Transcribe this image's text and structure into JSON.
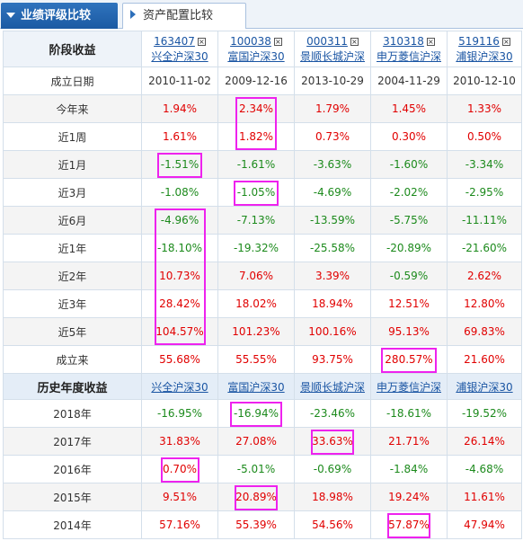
{
  "tabs": {
    "active_label": "业绩评级比较",
    "inactive_label": "资产配置比较"
  },
  "header": {
    "period_label": "阶段收益",
    "annual_label": "历史年度收益",
    "funds": [
      {
        "code": "163407",
        "name": "兴全沪深30"
      },
      {
        "code": "100038",
        "name": "富国沪深30"
      },
      {
        "code": "000311",
        "name": "景顺长城沪深"
      },
      {
        "code": "310318",
        "name": "申万菱信沪深"
      },
      {
        "code": "519116",
        "name": "浦银沪深30"
      }
    ],
    "close_glyph": "×"
  },
  "inception_row": {
    "label": "成立日期",
    "values": [
      "2010-11-02",
      "2009-12-16",
      "2013-10-29",
      "2004-11-29",
      "2010-12-10"
    ]
  },
  "period_rows": [
    {
      "label": "今年来",
      "values": [
        "1.94%",
        "2.34%",
        "1.79%",
        "1.45%",
        "1.33%"
      ],
      "signs": [
        "pos",
        "pos",
        "pos",
        "pos",
        "pos"
      ]
    },
    {
      "label": "近1周",
      "values": [
        "1.61%",
        "1.82%",
        "0.73%",
        "0.30%",
        "0.50%"
      ],
      "signs": [
        "pos",
        "pos",
        "pos",
        "pos",
        "pos"
      ]
    },
    {
      "label": "近1月",
      "values": [
        "-1.51%",
        "-1.61%",
        "-3.63%",
        "-1.60%",
        "-3.34%"
      ],
      "signs": [
        "neg",
        "neg",
        "neg",
        "neg",
        "neg"
      ]
    },
    {
      "label": "近3月",
      "values": [
        "-1.08%",
        "-1.05%",
        "-4.69%",
        "-2.02%",
        "-2.95%"
      ],
      "signs": [
        "neg",
        "neg",
        "neg",
        "neg",
        "neg"
      ]
    },
    {
      "label": "近6月",
      "values": [
        "-4.96%",
        "-7.13%",
        "-13.59%",
        "-5.75%",
        "-11.11%"
      ],
      "signs": [
        "neg",
        "neg",
        "neg",
        "neg",
        "neg"
      ]
    },
    {
      "label": "近1年",
      "values": [
        "-18.10%",
        "-19.32%",
        "-25.58%",
        "-20.89%",
        "-21.60%"
      ],
      "signs": [
        "neg",
        "neg",
        "neg",
        "neg",
        "neg"
      ]
    },
    {
      "label": "近2年",
      "values": [
        "10.73%",
        "7.06%",
        "3.39%",
        "-0.59%",
        "2.62%"
      ],
      "signs": [
        "pos",
        "pos",
        "pos",
        "neg",
        "pos"
      ]
    },
    {
      "label": "近3年",
      "values": [
        "28.42%",
        "18.02%",
        "18.94%",
        "12.51%",
        "12.80%"
      ],
      "signs": [
        "pos",
        "pos",
        "pos",
        "pos",
        "pos"
      ]
    },
    {
      "label": "近5年",
      "values": [
        "104.57%",
        "101.23%",
        "100.16%",
        "95.13%",
        "69.83%"
      ],
      "signs": [
        "pos",
        "pos",
        "pos",
        "pos",
        "pos"
      ]
    },
    {
      "label": "成立来",
      "values": [
        "55.68%",
        "55.55%",
        "93.75%",
        "280.57%",
        "21.60%"
      ],
      "signs": [
        "pos",
        "pos",
        "pos",
        "pos",
        "pos"
      ]
    }
  ],
  "annual_rows": [
    {
      "label": "2018年",
      "values": [
        "-16.95%",
        "-16.94%",
        "-23.46%",
        "-18.61%",
        "-19.52%"
      ],
      "signs": [
        "neg",
        "neg",
        "neg",
        "neg",
        "neg"
      ]
    },
    {
      "label": "2017年",
      "values": [
        "31.83%",
        "27.08%",
        "33.63%",
        "21.71%",
        "26.14%"
      ],
      "signs": [
        "pos",
        "pos",
        "pos",
        "pos",
        "pos"
      ]
    },
    {
      "label": "2016年",
      "values": [
        "0.70%",
        "-5.01%",
        "-0.69%",
        "-1.84%",
        "-4.68%"
      ],
      "signs": [
        "pos",
        "neg",
        "neg",
        "neg",
        "neg"
      ]
    },
    {
      "label": "2015年",
      "values": [
        "9.51%",
        "20.89%",
        "18.98%",
        "19.24%",
        "11.61%"
      ],
      "signs": [
        "pos",
        "pos",
        "pos",
        "pos",
        "pos"
      ]
    },
    {
      "label": "2014年",
      "values": [
        "57.16%",
        "55.39%",
        "54.56%",
        "57.87%",
        "47.94%"
      ],
      "signs": [
        "pos",
        "pos",
        "pos",
        "pos",
        "pos"
      ]
    }
  ],
  "colors": {
    "positive": "#e10000",
    "negative": "#1c8a1c",
    "highlight": "#ee22ee",
    "link": "#1a55a3"
  }
}
